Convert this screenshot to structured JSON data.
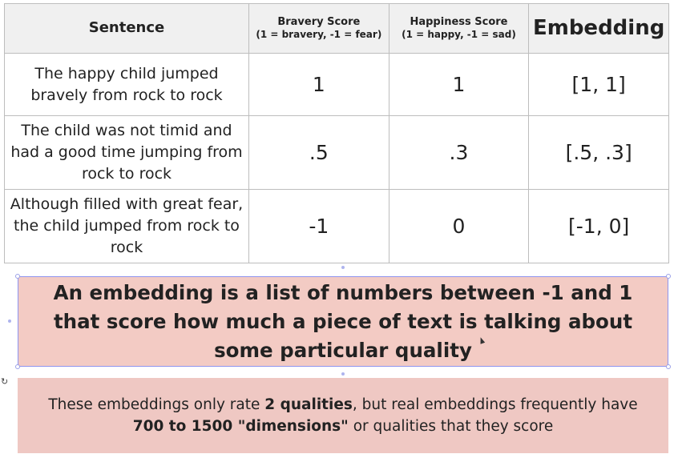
{
  "table": {
    "headers": {
      "sentence": "Sentence",
      "bravery_title": "Bravery Score",
      "bravery_sub": "(1 = bravery, -1 = fear)",
      "happiness_title": "Happiness Score",
      "happiness_sub": "(1 = happy, -1 = sad)",
      "embedding": "Embedding"
    },
    "rows": [
      {
        "sentence": "The happy child jumped bravely from rock to rock",
        "bravery": "1",
        "happiness": "1",
        "embedding": "[1, 1]"
      },
      {
        "sentence": "The child was not timid and had a good time jumping from rock to rock",
        "bravery": ".5",
        "happiness": ".3",
        "embedding": "[.5, .3]"
      },
      {
        "sentence": "Although filled with great fear, the child jumped from rock to rock",
        "bravery": "-1",
        "happiness": "0",
        "embedding": "[-1, 0]"
      }
    ]
  },
  "callout": {
    "text": "An embedding is a list of numbers between -1 and 1 that score how much a piece of text is talking about some particular quality"
  },
  "note": {
    "part1": "These embeddings only rate ",
    "bold1": "2 qualities",
    "part2": ", but real embeddings frequently have ",
    "bold2": "700 to 1500 \"dimensions\"",
    "part3": " or qualities that they score"
  },
  "icons": {
    "rotate": "rotate-icon",
    "cursor": "pointer-cursor-icon"
  },
  "colors": {
    "header_bg": "#f0f0f0",
    "callout_bg": "#f3cbc4",
    "note_bg": "#efc8c3",
    "selection": "#8f95ef"
  }
}
